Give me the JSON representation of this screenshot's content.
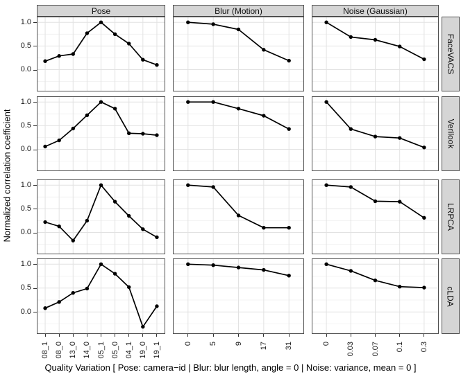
{
  "chart_data": {
    "type": "line",
    "title": "",
    "xlabel": "Quality Variation [ Pose: camera−id | Blur: blur length, angle = 0 | Noise: variance, mean = 0 ]",
    "ylabel": "Normalized correlation coefficient",
    "columns": [
      "Pose",
      "Blur (Motion)",
      "Noise (Gaussian)"
    ],
    "rows": [
      "FaceVACS",
      "Verilook",
      "LRPCA",
      "cLDA"
    ],
    "x_categories": {
      "Pose": [
        "08_1",
        "08_0",
        "13_0",
        "14_0",
        "05_1",
        "05_0",
        "04_1",
        "19_0",
        "19_1"
      ],
      "Blur (Motion)": [
        "0",
        "5",
        "9",
        "17",
        "31"
      ],
      "Noise (Gaussian)": [
        "0",
        "0.03",
        "0.07",
        "0.1",
        "0.3"
      ]
    },
    "y_tick_labels": [
      "1.0",
      "0.5",
      "0.0"
    ],
    "y_tick_values": [
      1.0,
      0.5,
      0.0
    ],
    "y_minor_values": [
      0.75,
      0.25,
      -0.25
    ],
    "ylim": [
      -0.46,
      1.12
    ],
    "grid": true,
    "legend": "none",
    "facets": [
      {
        "row": "FaceVACS",
        "col": "Pose",
        "values": [
          0.18,
          0.29,
          0.33,
          0.77,
          1.0,
          0.75,
          0.55,
          0.21,
          0.1
        ]
      },
      {
        "row": "FaceVACS",
        "col": "Blur (Motion)",
        "values": [
          1.0,
          0.96,
          0.85,
          0.42,
          0.19
        ]
      },
      {
        "row": "FaceVACS",
        "col": "Noise (Gaussian)",
        "values": [
          1.0,
          0.69,
          0.63,
          0.49,
          0.22
        ]
      },
      {
        "row": "Verilook",
        "col": "Pose",
        "values": [
          0.06,
          0.19,
          0.44,
          0.72,
          1.0,
          0.86,
          0.34,
          0.33,
          0.3
        ]
      },
      {
        "row": "Verilook",
        "col": "Blur (Motion)",
        "values": [
          1.0,
          1.0,
          0.86,
          0.71,
          0.43
        ]
      },
      {
        "row": "Verilook",
        "col": "Noise (Gaussian)",
        "values": [
          1.0,
          0.43,
          0.27,
          0.24,
          0.04
        ]
      },
      {
        "row": "LRPCA",
        "col": "Pose",
        "values": [
          0.22,
          0.13,
          -0.17,
          0.25,
          1.0,
          0.65,
          0.35,
          0.07,
          -0.1
        ]
      },
      {
        "row": "LRPCA",
        "col": "Blur (Motion)",
        "values": [
          1.0,
          0.96,
          0.36,
          0.1,
          0.1
        ]
      },
      {
        "row": "LRPCA",
        "col": "Noise (Gaussian)",
        "values": [
          1.0,
          0.96,
          0.66,
          0.65,
          0.31
        ]
      },
      {
        "row": "cLDA",
        "col": "Pose",
        "values": [
          0.08,
          0.21,
          0.4,
          0.49,
          1.0,
          0.8,
          0.52,
          -0.31,
          0.12
        ]
      },
      {
        "row": "cLDA",
        "col": "Blur (Motion)",
        "values": [
          1.0,
          0.98,
          0.93,
          0.88,
          0.76
        ]
      },
      {
        "row": "cLDA",
        "col": "Noise (Gaussian)",
        "values": [
          1.0,
          0.86,
          0.66,
          0.53,
          0.51
        ]
      }
    ],
    "colors": {
      "line": "#000000",
      "point": "#000000",
      "strip_bg": "#d5d5d5",
      "panel_border": "#4f4f4f",
      "grid_major": "#e2e2e2",
      "grid_minor": "#efefef",
      "panel_bg": "#ffffff"
    }
  }
}
